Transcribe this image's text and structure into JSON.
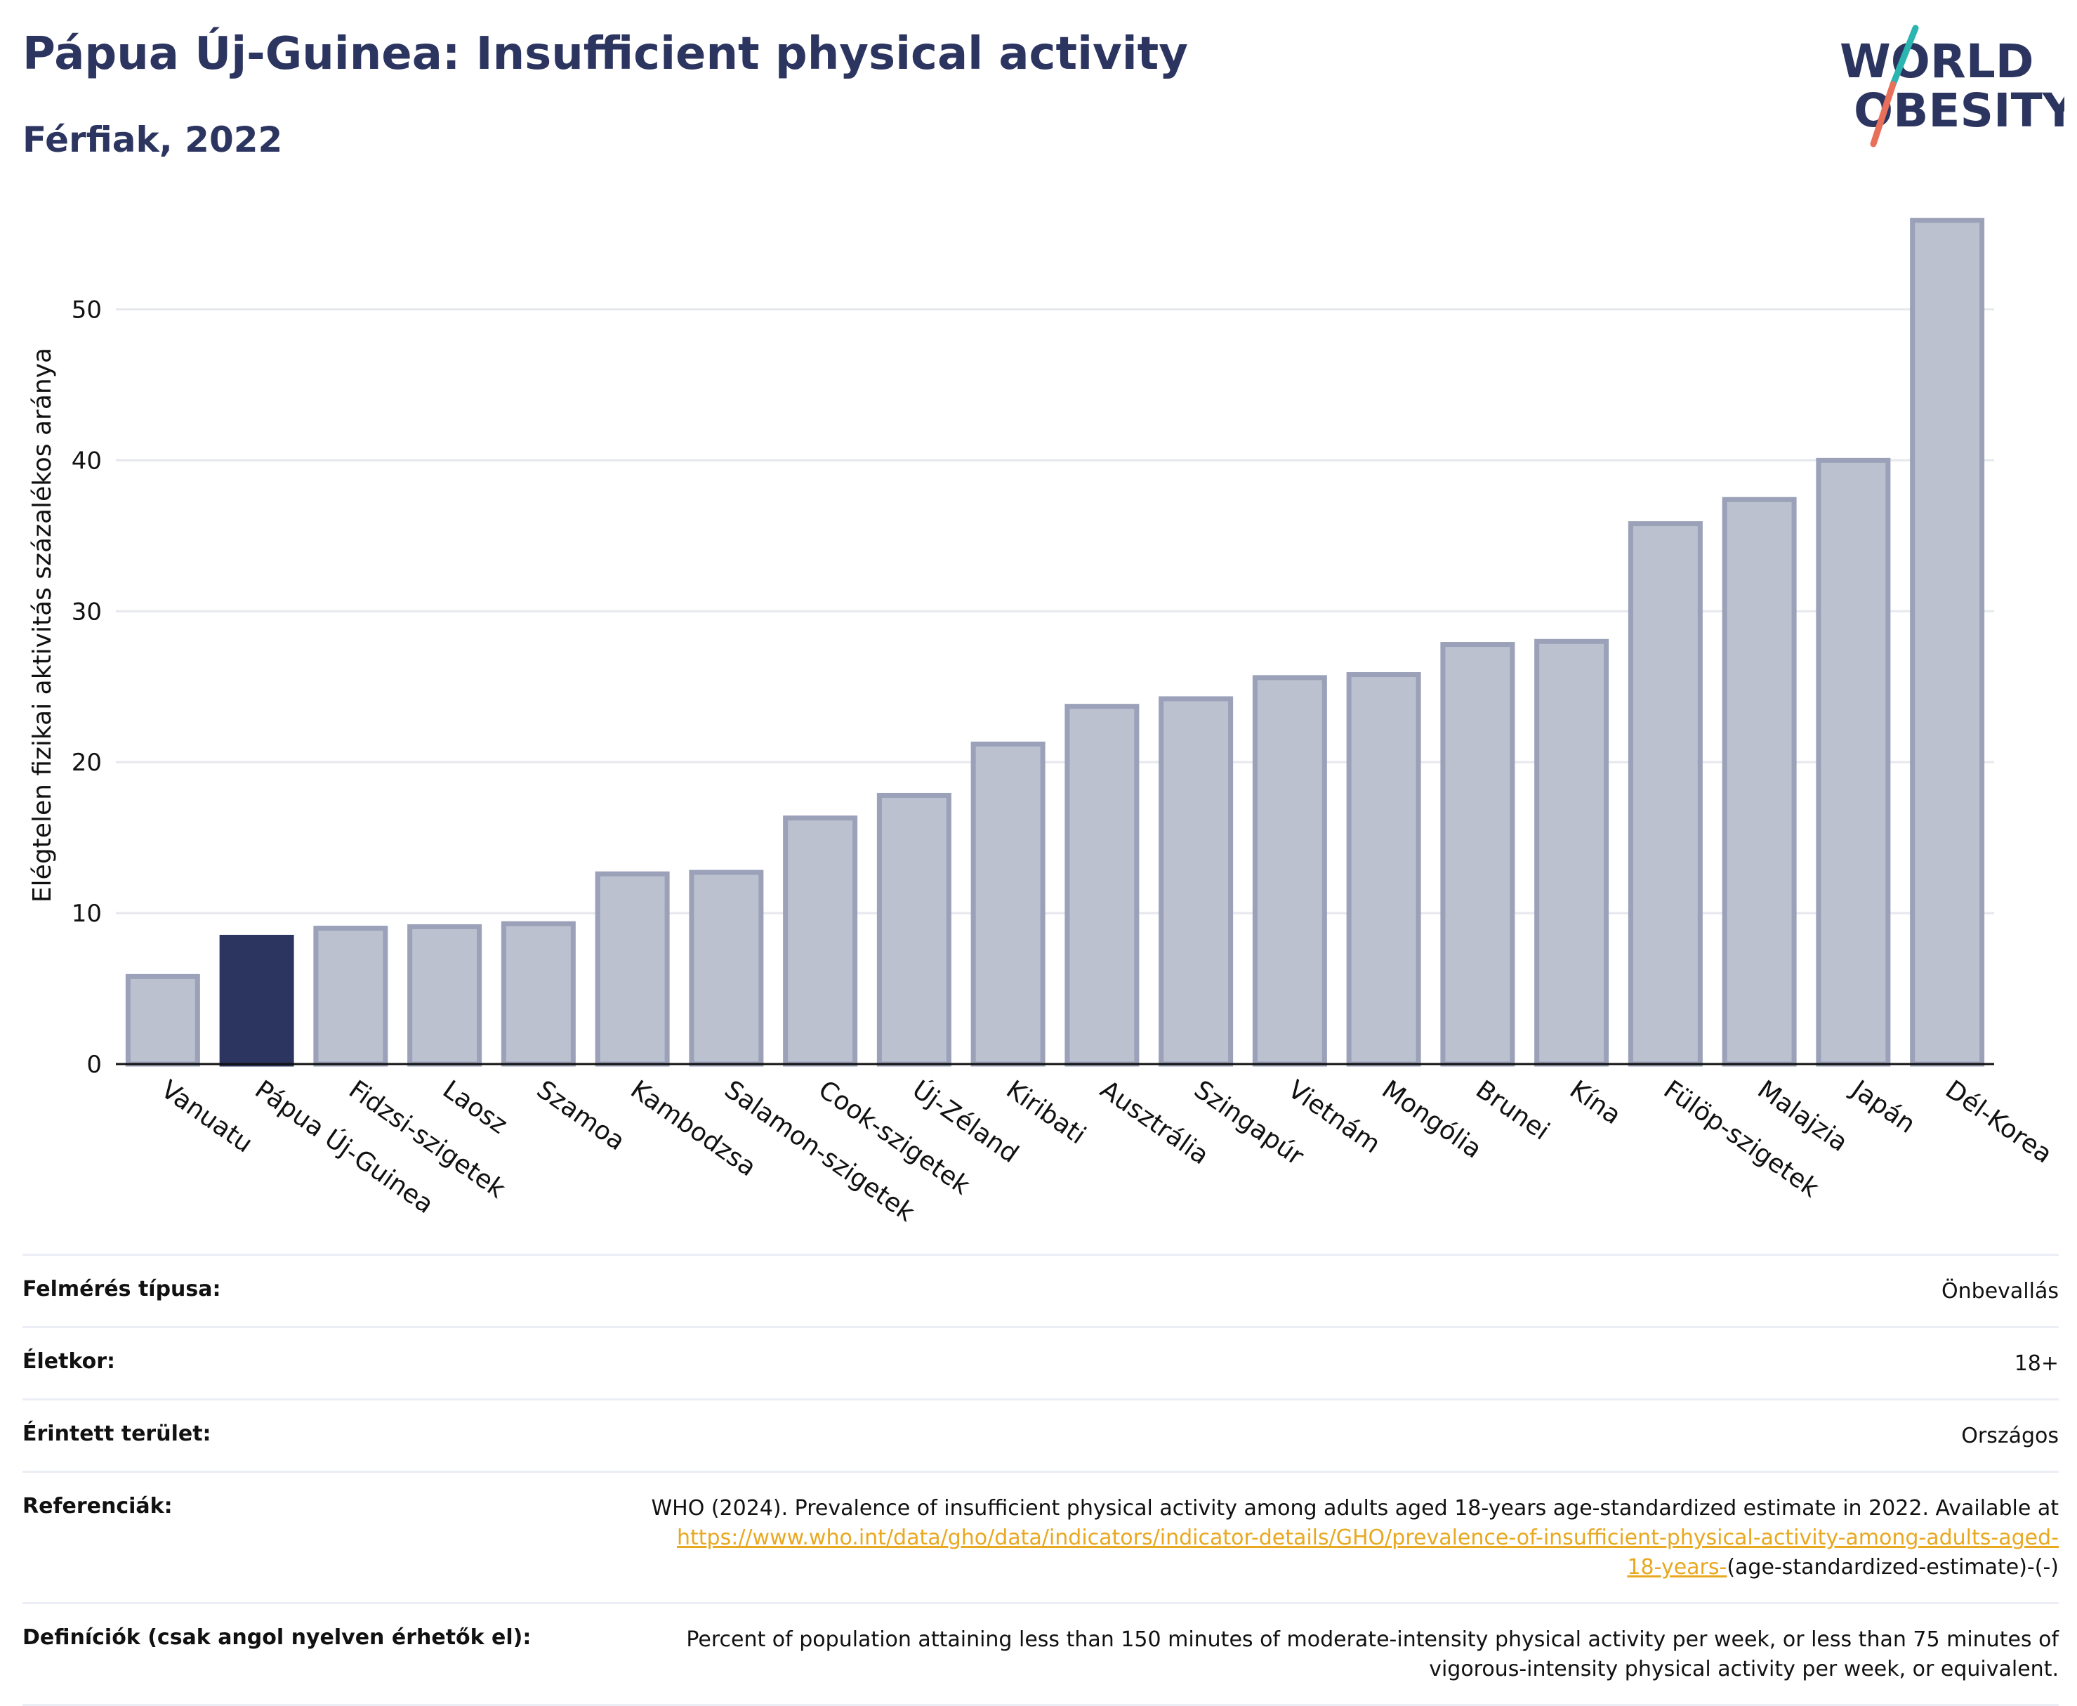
{
  "header": {
    "title": "Pápua Új-Guinea: Insufficient physical activity",
    "subtitle": "Férfiak, 2022"
  },
  "logo": {
    "line1": "WORLD",
    "line2": "OBESITY"
  },
  "colors": {
    "highlight": "#2c3560",
    "bar": "#bcc1cf",
    "bar_outline": "#9aa1b8",
    "grid": "#e6e8ee",
    "axis": "#111111",
    "link": "#e8a820"
  },
  "chart_data": {
    "type": "bar",
    "ylabel": "Elégtelen fizikai aktivitás százalékos aránya",
    "xlabel": "",
    "ylim": [
      0,
      57
    ],
    "yticks": [
      0,
      10,
      20,
      30,
      40,
      50
    ],
    "grid": true,
    "highlight": "Pápua Új-Guinea",
    "categories": [
      "Vanuatu",
      "Pápua Új-Guinea",
      "Fidzsi-szigetek",
      "Laosz",
      "Szamoa",
      "Kambodzsa",
      "Salamon-szigetek",
      "Cook-szigetek",
      "Új-Zéland",
      "Kiribati",
      "Ausztrália",
      "Szingapúr",
      "Vietnám",
      "Mongólia",
      "Brunei",
      "Kína",
      "Fülöp-szigetek",
      "Malajzia",
      "Japán",
      "Dél-Korea"
    ],
    "values": [
      5.8,
      8.4,
      9.0,
      9.1,
      9.3,
      12.6,
      12.7,
      16.3,
      17.8,
      21.2,
      23.7,
      24.2,
      25.6,
      25.8,
      27.8,
      28.0,
      35.8,
      37.4,
      40.0,
      55.9
    ]
  },
  "meta": {
    "survey_type": {
      "label": "Felmérés típusa:",
      "value": "Önbevallás"
    },
    "age": {
      "label": "Életkor:",
      "value": "18+"
    },
    "area": {
      "label": "Érintett terület:",
      "value": "Országos"
    },
    "references": {
      "label": "Referenciák:",
      "text": "WHO (2024). Prevalence of insufficient physical activity among adults aged 18-years age-standardized estimate in 2022. Available at",
      "link_line1": "https://www.who.int/data/gho/data/indicators/indicator-details/GHO/prevalence-of-insufficient-physical-activity-among-adults-aged-",
      "link_line2": "18-years-",
      "suffix": "(age-standardized-estimate)-(-)"
    },
    "definitions": {
      "label": "Definíciók (csak angol nyelven érhetők el):",
      "line1": "Percent of population attaining less than 150 minutes of moderate-intensity physical activity per week, or less than 75 minutes of",
      "line2": "vigorous-intensity physical activity per week, or equivalent."
    }
  }
}
